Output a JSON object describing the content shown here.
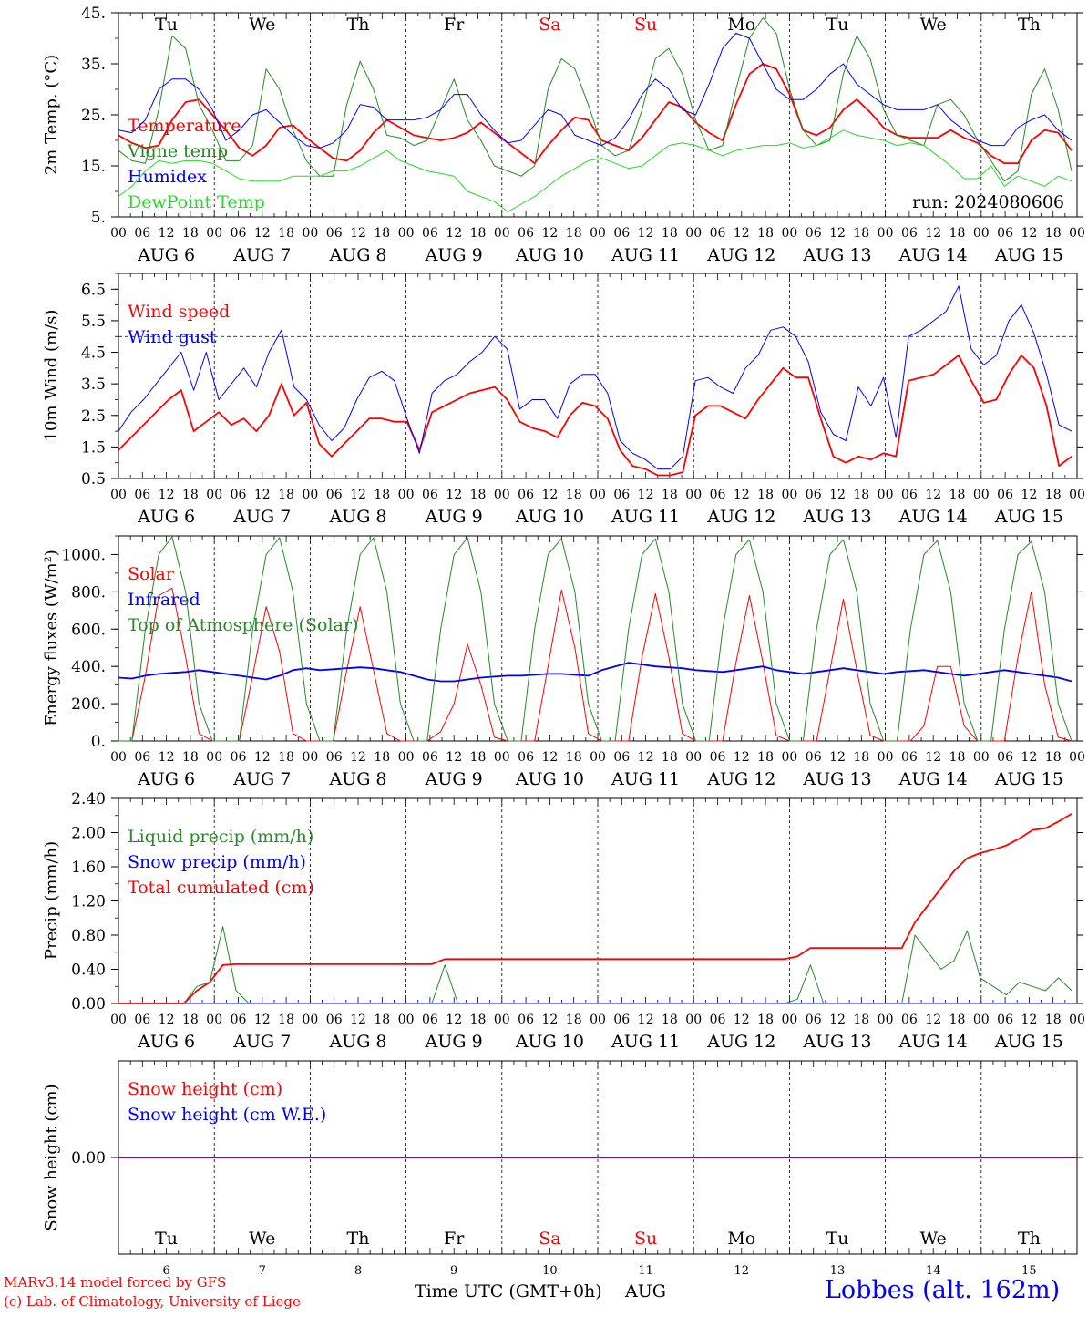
{
  "days": [
    "AUG 6",
    "AUG 7",
    "AUG 8",
    "AUG 9",
    "AUG 10",
    "AUG 11",
    "AUG 12",
    "AUG 13",
    "AUG 14",
    "AUG 15"
  ],
  "hours": [
    "00",
    "06",
    "12",
    "18"
  ],
  "end_hour": "00",
  "weekdays": [
    {
      "label": "Tu",
      "color": "#000000"
    },
    {
      "label": "We",
      "color": "#000000"
    },
    {
      "label": "Th",
      "color": "#000000"
    },
    {
      "label": "Fr",
      "color": "#000000"
    },
    {
      "label": "Sa",
      "color": "#ff0000"
    },
    {
      "label": "Su",
      "color": "#ff0000"
    },
    {
      "label": "Mo",
      "color": "#000000"
    },
    {
      "label": "Tu",
      "color": "#000000"
    },
    {
      "label": "We",
      "color": "#000000"
    },
    {
      "label": "Th",
      "color": "#000000"
    }
  ],
  "bottom_day_numbers": [
    "6",
    "7",
    "8",
    "9",
    "10",
    "11",
    "12",
    "13",
    "14",
    "15"
  ],
  "run_label": "run: 2024080606",
  "footer": {
    "left_line1": "MARv3.14 model forced by GFS",
    "left_line2": "(c) Lab. of Climatology, University of Liege",
    "center": "Time UTC (GMT+0h)",
    "center_month": "AUG",
    "right": "Lobbes (alt. 162m)"
  },
  "colors": {
    "red": "#ff0000",
    "green": "#228b22",
    "blue": "#0000ff",
    "lightgreen": "#22dd22",
    "purple": "#800080"
  },
  "chart_data": [
    {
      "type": "line",
      "ylabel": "2m Temp. (°C)",
      "yticks": [
        "45.",
        "35.",
        "25.",
        "15.",
        "5."
      ],
      "ylim": [
        5,
        45
      ],
      "x": "hours since AUG 6 00 UTC (3-hourly)",
      "series": [
        {
          "name": "Temperature",
          "color": "#ff0000",
          "values": [
            21,
            19.5,
            18.5,
            19,
            24,
            27.5,
            28,
            25,
            22,
            18.5,
            17,
            19,
            22.5,
            23,
            20.5,
            18.5,
            16.5,
            16,
            18,
            21.5,
            24,
            22.5,
            21,
            20.5,
            20,
            20.5,
            21.5,
            23.5,
            21.5,
            19.5,
            17.5,
            15.5,
            19,
            22,
            24.5,
            24,
            20,
            19,
            18,
            20.5,
            24,
            27.5,
            26.5,
            23.5,
            21.5,
            20,
            27,
            33,
            35,
            34,
            29,
            22,
            21,
            22.5,
            26,
            28,
            25.5,
            22.5,
            21,
            20.5,
            20.5,
            20.5,
            22,
            20.5,
            19.5,
            17,
            15.5,
            15.5,
            20,
            22,
            21.5,
            18
          ]
        },
        {
          "name": "Vigne temp",
          "color": "#228b22",
          "values": [
            18,
            16,
            15.5,
            26,
            40.5,
            38,
            27,
            22,
            16,
            16,
            19,
            34,
            30,
            22,
            16,
            13,
            13,
            27,
            35.5,
            30,
            21,
            20.5,
            19,
            20,
            26,
            32,
            24,
            20,
            15,
            14,
            13,
            15,
            30,
            36,
            34,
            27,
            19,
            17,
            18,
            26,
            36,
            38,
            33,
            24,
            18,
            19,
            30,
            40,
            44,
            41,
            30,
            22,
            19,
            20,
            33,
            40.5,
            36,
            26,
            21,
            20,
            19,
            27,
            28,
            25,
            20,
            16,
            12,
            14,
            29,
            34,
            26,
            14
          ]
        },
        {
          "name": "Humidex",
          "color": "#0000ff",
          "values": [
            22,
            21.5,
            24,
            30,
            32,
            32,
            30,
            26,
            20,
            22,
            25,
            26,
            23.5,
            21,
            19,
            18.5,
            19.5,
            22,
            27,
            26.5,
            24,
            24,
            24,
            24.5,
            26,
            29,
            29,
            25,
            22,
            19.5,
            20,
            23,
            26,
            25,
            21,
            20,
            19,
            20.5,
            24,
            29,
            32,
            30,
            26,
            25,
            31,
            38,
            41,
            40,
            35,
            30,
            28,
            28,
            30,
            33,
            35,
            31,
            29,
            27,
            26,
            26,
            26,
            27,
            24,
            22,
            20,
            19,
            19,
            22.5,
            24,
            25,
            22,
            20
          ]
        },
        {
          "name": "DewPoint Temp",
          "color": "#22dd22",
          "values": [
            9,
            11,
            14,
            16,
            15.5,
            16,
            16,
            15.5,
            14,
            12.5,
            12,
            12,
            12,
            13,
            13,
            13,
            14,
            14,
            15,
            16.5,
            18,
            16,
            15,
            14,
            13.5,
            13,
            10,
            9,
            8,
            6,
            7.5,
            9,
            11,
            13,
            14.5,
            16,
            16.5,
            15.5,
            14.5,
            15,
            17,
            19,
            19.5,
            19,
            18,
            17,
            18,
            18.5,
            19,
            19,
            19.5,
            18.5,
            19,
            20.5,
            22,
            21,
            20.5,
            20,
            19,
            19.5,
            19,
            17,
            15,
            12.5,
            12.5,
            15,
            11,
            13,
            12,
            11,
            13,
            12
          ]
        }
      ]
    },
    {
      "type": "line",
      "ylabel": "10m Wind (m/s)",
      "yticks": [
        "6.5",
        "5.5",
        "4.5",
        "3.5",
        "2.5",
        "1.5",
        "0.5"
      ],
      "ylim": [
        0.5,
        7
      ],
      "reference_line": 5,
      "series": [
        {
          "name": "Wind speed",
          "color": "#ff0000",
          "values": [
            1.4,
            1.8,
            2.2,
            2.6,
            3,
            3.3,
            2,
            2.3,
            2.6,
            2.2,
            2.4,
            2,
            2.5,
            3.5,
            2.5,
            2.9,
            1.6,
            1.2,
            1.6,
            2,
            2.4,
            2.4,
            2.3,
            2.3,
            1.4,
            2.6,
            2.8,
            3,
            3.2,
            3.3,
            3.4,
            3,
            2.3,
            2.1,
            2,
            1.8,
            2.5,
            2.9,
            2.8,
            2.4,
            1.4,
            0.9,
            0.8,
            0.6,
            0.6,
            0.7,
            2.5,
            2.8,
            2.8,
            2.6,
            2.4,
            3,
            3.5,
            4,
            3.7,
            3.7,
            2.4,
            1.2,
            1,
            1.2,
            1.1,
            1.3,
            1.2,
            3.6,
            3.7,
            3.8,
            4.1,
            4.4,
            3.6,
            2.9,
            3,
            3.8,
            4.4,
            4,
            2.8,
            0.9,
            1.2
          ]
        },
        {
          "name": "Wind gust",
          "color": "#0000ff",
          "values": [
            2,
            2.6,
            3,
            3.5,
            4,
            4.5,
            3.3,
            4.5,
            3,
            3.5,
            4,
            3.4,
            4.5,
            5.2,
            3.4,
            3,
            2.2,
            1.7,
            2.1,
            3,
            3.7,
            3.9,
            3.6,
            2.4,
            1.3,
            3.2,
            3.6,
            3.8,
            4.2,
            4.5,
            5,
            4.6,
            2.7,
            3,
            3,
            2.4,
            3.5,
            3.8,
            3.8,
            3.2,
            1.7,
            1.3,
            1.1,
            0.8,
            0.8,
            1.2,
            3.6,
            3.7,
            3.4,
            3.2,
            4,
            4.4,
            5.2,
            5.3,
            5,
            4.2,
            2.6,
            1.9,
            1.7,
            3.4,
            2.8,
            3.7,
            1.8,
            5,
            5.2,
            5.5,
            5.8,
            6.6,
            4.6,
            4.1,
            4.4,
            5.5,
            6,
            5.1,
            3.8,
            2.2,
            2
          ]
        }
      ]
    },
    {
      "type": "line",
      "ylabel": "Energy fluxes (W/m²)",
      "yticks": [
        "1000.",
        "800.",
        "600.",
        "400.",
        "200.",
        "0."
      ],
      "ylim": [
        0,
        1100
      ],
      "series": [
        {
          "name": "Solar",
          "color": "#ff0000",
          "values": [
            0,
            0,
            350,
            780,
            820,
            450,
            40,
            0,
            0,
            0,
            350,
            720,
            480,
            40,
            0,
            0,
            0,
            380,
            720,
            380,
            40,
            0,
            0,
            0,
            50,
            200,
            520,
            300,
            20,
            0,
            0,
            0,
            400,
            810,
            500,
            40,
            0,
            0,
            0,
            450,
            790,
            450,
            40,
            0,
            0,
            0,
            420,
            780,
            420,
            30,
            0,
            0,
            0,
            380,
            760,
            380,
            30,
            0,
            0,
            0,
            80,
            400,
            400,
            80,
            0,
            0,
            0,
            450,
            800,
            300,
            20,
            0
          ]
        },
        {
          "name": "Infrared",
          "color": "#0000ff",
          "values": [
            340,
            335,
            350,
            360,
            365,
            370,
            380,
            370,
            360,
            350,
            340,
            330,
            350,
            380,
            390,
            380,
            385,
            390,
            395,
            390,
            380,
            370,
            350,
            330,
            320,
            320,
            330,
            340,
            345,
            350,
            350,
            355,
            360,
            360,
            355,
            350,
            380,
            400,
            420,
            410,
            400,
            395,
            390,
            380,
            375,
            370,
            380,
            390,
            400,
            380,
            370,
            360,
            370,
            380,
            390,
            380,
            370,
            360,
            370,
            375,
            380,
            370,
            360,
            350,
            360,
            370,
            380,
            370,
            360,
            350,
            340,
            320
          ]
        },
        {
          "name": "Top of Atmosphere (Solar)",
          "color": "#228b22",
          "values": [
            0,
            0,
            600,
            1000,
            1095,
            800,
            200,
            0,
            0,
            0,
            600,
            1000,
            1090,
            800,
            200,
            0,
            0,
            600,
            1000,
            1090,
            800,
            200,
            0,
            0,
            600,
            1000,
            1090,
            800,
            200,
            0,
            0,
            600,
            1000,
            1085,
            800,
            200,
            0,
            0,
            600,
            1000,
            1085,
            800,
            200,
            0,
            0,
            600,
            1000,
            1080,
            800,
            200,
            0,
            0,
            600,
            1000,
            1080,
            800,
            200,
            0,
            0,
            600,
            1000,
            1075,
            800,
            200,
            0,
            0,
            600,
            1000,
            1070,
            800,
            200,
            0
          ]
        }
      ]
    },
    {
      "type": "line",
      "ylabel": "Precip (mm/h)",
      "yticks": [
        "2.40",
        "2.00",
        "1.60",
        "1.20",
        "0.80",
        "0.40",
        "0.00"
      ],
      "ylim": [
        0,
        2.4
      ],
      "series": [
        {
          "name": "Liquid precip (mm/h)",
          "color": "#228b22",
          "values": [
            0,
            0,
            0,
            0,
            0,
            0,
            0.2,
            0.25,
            0.9,
            0.15,
            0,
            0,
            0,
            0,
            0,
            0,
            0,
            0,
            0,
            0,
            0,
            0,
            0,
            0,
            0,
            0.45,
            0,
            0,
            0,
            0,
            0,
            0,
            0,
            0,
            0,
            0,
            0,
            0,
            0,
            0,
            0,
            0,
            0,
            0,
            0,
            0,
            0,
            0,
            0,
            0,
            0,
            0,
            0.05,
            0.45,
            0,
            0,
            0,
            0,
            0,
            0,
            0,
            0.8,
            0.6,
            0.4,
            0.5,
            0.85,
            0.3,
            0.2,
            0.1,
            0.25,
            0.2,
            0.15,
            0.3,
            0.15
          ]
        },
        {
          "name": "Snow precip (mm/h)",
          "color": "#0000ff",
          "values": [
            0,
            0,
            0,
            0,
            0,
            0,
            0,
            0,
            0,
            0,
            0,
            0,
            0,
            0,
            0,
            0,
            0,
            0,
            0,
            0,
            0,
            0,
            0,
            0,
            0,
            0,
            0,
            0,
            0,
            0,
            0,
            0,
            0,
            0,
            0,
            0,
            0,
            0,
            0,
            0,
            0,
            0,
            0,
            0,
            0,
            0,
            0,
            0,
            0,
            0,
            0,
            0,
            0,
            0,
            0,
            0,
            0,
            0,
            0,
            0,
            0,
            0,
            0,
            0,
            0,
            0,
            0,
            0,
            0,
            0,
            0,
            0,
            0,
            0
          ]
        },
        {
          "name": "Total cumulated (cm)",
          "color": "#ff0000",
          "values": [
            0,
            0,
            0,
            0,
            0,
            0,
            0.15,
            0.25,
            0.45,
            0.46,
            0.46,
            0.46,
            0.46,
            0.46,
            0.46,
            0.46,
            0.46,
            0.46,
            0.46,
            0.46,
            0.46,
            0.46,
            0.46,
            0.46,
            0.46,
            0.52,
            0.52,
            0.52,
            0.52,
            0.52,
            0.52,
            0.52,
            0.52,
            0.52,
            0.52,
            0.52,
            0.52,
            0.52,
            0.52,
            0.52,
            0.52,
            0.52,
            0.52,
            0.52,
            0.52,
            0.52,
            0.52,
            0.52,
            0.52,
            0.52,
            0.52,
            0.52,
            0.55,
            0.65,
            0.65,
            0.65,
            0.65,
            0.65,
            0.65,
            0.65,
            0.65,
            0.95,
            1.15,
            1.35,
            1.55,
            1.7,
            1.76,
            1.8,
            1.85,
            1.93,
            2.03,
            2.05,
            2.13,
            2.22
          ]
        }
      ]
    },
    {
      "type": "line",
      "ylabel": "Snow height (cm)",
      "yticks": [
        "0.00"
      ],
      "ylim": [
        -1,
        1
      ],
      "series": [
        {
          "name": "Snow height (cm)",
          "color": "#ff0000",
          "values": [
            0,
            0
          ]
        },
        {
          "name": "Snow height (cm W.E.)",
          "color": "#0000ff",
          "values": [
            0,
            0
          ]
        }
      ]
    }
  ]
}
